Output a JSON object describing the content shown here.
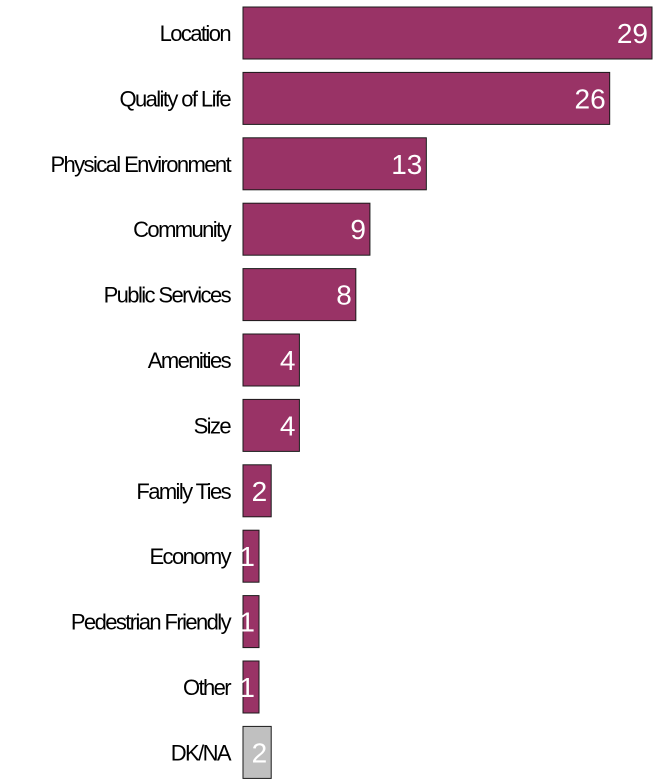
{
  "chart_data": {
    "type": "bar",
    "orientation": "horizontal",
    "categories": [
      "Location",
      "Quality of Life",
      "Physical Environment",
      "Community",
      "Public Services",
      "Amenities",
      "Size",
      "Family Ties",
      "Economy",
      "Pedestrian Friendly",
      "Other",
      "DK/NA"
    ],
    "values": [
      29,
      26,
      13,
      9,
      8,
      4,
      4,
      2,
      1,
      1,
      1,
      2
    ],
    "value_labels": [
      "29",
      "26",
      "13",
      "9",
      "8",
      "4",
      "4",
      "2",
      "1",
      "1",
      "1",
      "2"
    ],
    "xlim": [
      0,
      29
    ],
    "grid": false,
    "legend": "none",
    "title": "",
    "xlabel": "",
    "ylabel": ""
  },
  "colors": {
    "bar": "#993366",
    "bar_dk_na": "#c0c0c0",
    "value_text": "#ffffff",
    "category_text": "#000000"
  }
}
